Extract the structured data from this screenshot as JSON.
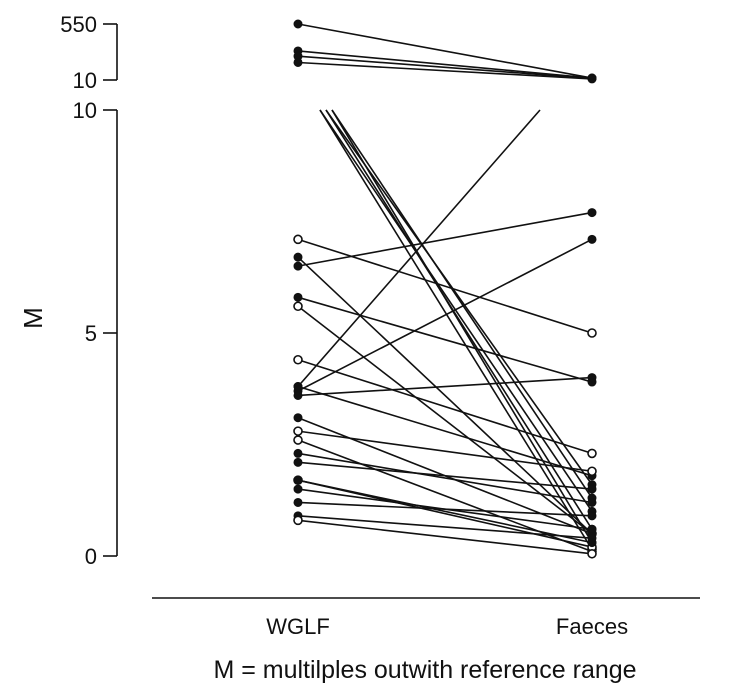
{
  "chart_data": {
    "type": "line",
    "chart_kind": "paired dot plot (before/after)",
    "categories": [
      "WGLF",
      "Faeces"
    ],
    "ylabel": "M",
    "caption": "M = multilples outwith reference range",
    "y_axis": {
      "segments": [
        {
          "range": [
            0,
            10
          ],
          "ticks": [
            0,
            5,
            10
          ],
          "tick_labels": [
            "0",
            "5",
            "10"
          ]
        },
        {
          "range": [
            10,
            550
          ],
          "ticks": [
            10,
            550
          ],
          "tick_labels": [
            "10",
            "550"
          ],
          "note": "broken axis, compressed upper segment"
        }
      ]
    },
    "grid": false,
    "legend": "none",
    "pairs": [
      {
        "wglf": 550,
        "faeces": 11.5,
        "marker": "solid"
      },
      {
        "wglf": 80,
        "faeces": 11.5,
        "marker": "solid"
      },
      {
        "wglf": 55,
        "faeces": 11.2,
        "marker": "solid"
      },
      {
        "wglf": 35,
        "faeces": 10.8,
        "marker": "solid"
      },
      {
        "wglf": 10,
        "faeces": 1.6,
        "marker": "solid"
      },
      {
        "wglf": 10,
        "faeces": 1.3,
        "marker": "solid"
      },
      {
        "wglf": 10,
        "faeces": 1.0,
        "marker": "solid"
      },
      {
        "wglf": 10,
        "faeces": 0.6,
        "marker": "solid"
      },
      {
        "wglf": 10,
        "faeces": 0.3,
        "marker": "solid"
      },
      {
        "wglf": 10,
        "faeces": 0.15,
        "marker": "open"
      },
      {
        "wglf": 7.1,
        "faeces": 5.0,
        "marker": "open"
      },
      {
        "wglf": 6.7,
        "faeces": 0.5,
        "marker": "solid"
      },
      {
        "wglf": 6.5,
        "faeces": 7.7,
        "marker": "solid"
      },
      {
        "wglf": 5.8,
        "faeces": 3.9,
        "marker": "solid"
      },
      {
        "wglf": 5.6,
        "faeces": 0.5,
        "marker": "open"
      },
      {
        "wglf": 4.4,
        "faeces": 2.3,
        "marker": "open"
      },
      {
        "wglf": 3.8,
        "faeces": 1.8,
        "marker": "solid"
      },
      {
        "wglf": 3.7,
        "faeces": 7.1,
        "marker": "solid"
      },
      {
        "wglf": 3.6,
        "faeces": 4.0,
        "marker": "solid"
      },
      {
        "wglf": 3.1,
        "faeces": 0.5,
        "marker": "solid"
      },
      {
        "wglf": 2.8,
        "faeces": 1.9,
        "marker": "open"
      },
      {
        "wglf": 2.6,
        "faeces": 0.1,
        "marker": "open"
      },
      {
        "wglf": 2.3,
        "faeces": 1.2,
        "marker": "solid"
      },
      {
        "wglf": 2.1,
        "faeces": 1.5,
        "marker": "solid"
      },
      {
        "wglf": 1.7,
        "faeces": 0.2,
        "marker": "open"
      },
      {
        "wglf": 1.5,
        "faeces": 0.6,
        "marker": "solid"
      },
      {
        "wglf": 1.2,
        "faeces": 0.9,
        "marker": "solid"
      },
      {
        "wglf": 0.9,
        "faeces": 0.4,
        "marker": "solid"
      },
      {
        "wglf": 0.8,
        "faeces": 0.05,
        "marker": "open"
      },
      {
        "wglf": 1.7,
        "faeces": 0.3,
        "marker": "solid"
      }
    ],
    "offscale_lines": [
      {
        "from": "WGLF",
        "value": 3.8,
        "to_value": 10,
        "note": "line rises off the 0–10 scale toward Faeces"
      }
    ]
  }
}
